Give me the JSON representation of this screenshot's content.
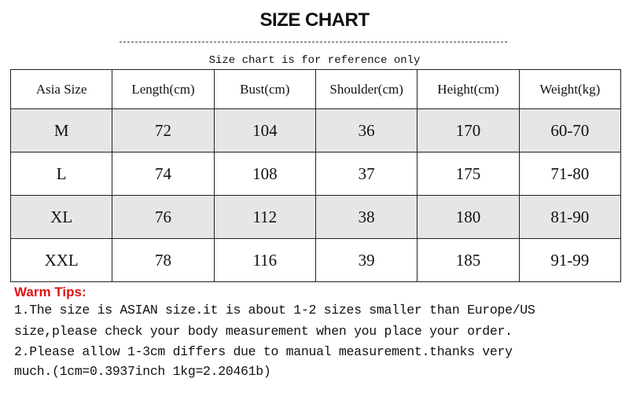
{
  "title": "SIZE CHART",
  "subtitle": "Size chart is for reference only",
  "table": {
    "headers": [
      "Asia Size",
      "Length(cm)",
      "Bust(cm)",
      "Shoulder(cm)",
      "Height(cm)",
      "Weight(kg)"
    ],
    "rows": [
      [
        "M",
        "72",
        "104",
        "36",
        "170",
        "60-70"
      ],
      [
        "L",
        "74",
        "108",
        "37",
        "175",
        "71-80"
      ],
      [
        "XL",
        "76",
        "112",
        "38",
        "180",
        "81-90"
      ],
      [
        "XXL",
        "78",
        "116",
        "39",
        "185",
        "91-99"
      ]
    ]
  },
  "tips": {
    "heading": "Warm Tips:",
    "lines": [
      "1.The size is ASIAN size.it is about 1-2 sizes smaller than Europe/US",
      "size,please check your body measurement when you place your order.",
      "2.Please allow 1-3cm differs due to manual measurement.thanks very",
      "much.(1cm=0.3937inch 1kg=2.20461b)"
    ]
  },
  "colors": {
    "tips_heading": "#e01010",
    "alt_row": "#e6e6e6"
  }
}
